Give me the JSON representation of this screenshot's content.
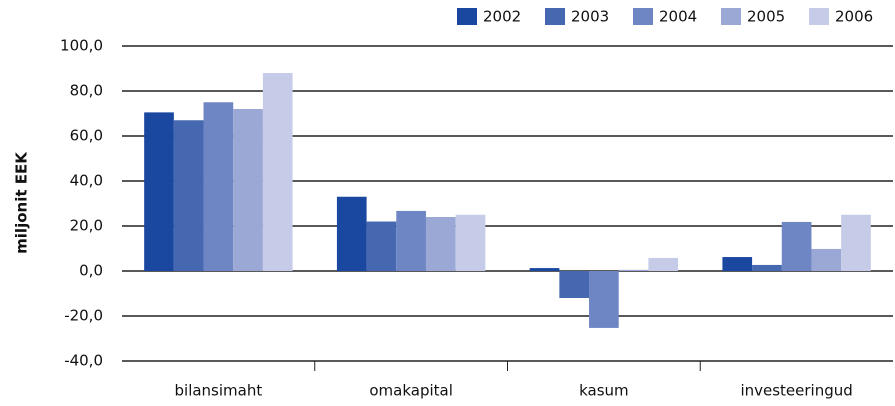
{
  "chart_data": {
    "type": "bar",
    "y_label": "miljonit EEK",
    "categories": [
      "bilansimaht",
      "omakapital",
      "kasum",
      "investeeringud"
    ],
    "series": [
      {
        "name": "2002",
        "color": "#1a47a0",
        "values": [
          70.5,
          33,
          1.3,
          6.2
        ]
      },
      {
        "name": "2003",
        "color": "#4668b0",
        "values": [
          67,
          22,
          -12,
          2.7
        ]
      },
      {
        "name": "2004",
        "color": "#6f86c4",
        "values": [
          75,
          26.7,
          -25.3,
          21.8
        ]
      },
      {
        "name": "2005",
        "color": "#9ba8d6",
        "values": [
          72,
          24,
          0.5,
          9.8
        ]
      },
      {
        "name": "2006",
        "color": "#c6cce8",
        "values": [
          88,
          25,
          5.8,
          25
        ]
      }
    ],
    "ylim": [
      -40,
      100
    ],
    "yticks": [
      {
        "value": -40,
        "label": "-40,0"
      },
      {
        "value": -20,
        "label": "-20,0"
      },
      {
        "value": 0,
        "label": "0,0"
      },
      {
        "value": 20,
        "label": "20,0"
      },
      {
        "value": 40,
        "label": "40,0"
      },
      {
        "value": 60,
        "label": "60,0"
      },
      {
        "value": 80,
        "label": "80,0"
      },
      {
        "value": 100,
        "label": "100,0"
      }
    ],
    "grid": true,
    "legend": "top-right"
  }
}
